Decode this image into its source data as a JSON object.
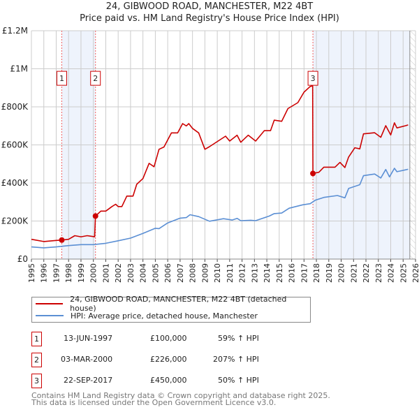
{
  "title_line1": "24, GIBWOOD ROAD, MANCHESTER, M22 4BT",
  "title_line2": "Price paid vs. HM Land Registry's House Price Index (HPI)",
  "colors": {
    "property": "#cc0000",
    "hpi": "#5b8fd4",
    "shade": "#eef3fc",
    "grid": "#cccccc"
  },
  "chart_data": {
    "type": "line",
    "title": "Price paid vs. HM Land Registry's House Price Index (HPI)",
    "xlim": [
      1995,
      2026
    ],
    "ylim": [
      0,
      1200000
    ],
    "x_ticks": [
      1995,
      1996,
      1997,
      1998,
      1999,
      2000,
      2001,
      2002,
      2003,
      2004,
      2005,
      2006,
      2007,
      2008,
      2009,
      2010,
      2011,
      2012,
      2013,
      2014,
      2015,
      2016,
      2017,
      2018,
      2019,
      2020,
      2021,
      2022,
      2023,
      2024,
      2025,
      2026
    ],
    "y_ticks": [
      {
        "value": 0,
        "label": "£0"
      },
      {
        "value": 200000,
        "label": "£200K"
      },
      {
        "value": 400000,
        "label": "£400K"
      },
      {
        "value": 600000,
        "label": "£600K"
      },
      {
        "value": 800000,
        "label": "£800K"
      },
      {
        "value": 1000000,
        "label": "£1M"
      },
      {
        "value": 1200000,
        "label": "£1.2M"
      }
    ],
    "grid": true,
    "shaded_ranges": [
      [
        1997.45,
        2000.17
      ],
      [
        2017.72,
        2025.54
      ]
    ],
    "hatched_from": 2025.54,
    "series": [
      {
        "name": "24, GIBWOOD ROAD, MANCHESTER, M22 4BT (detached house)",
        "color": "#cc0000",
        "x": [
          1995,
          1996,
          1997,
          1997.45,
          1998,
          1998.5,
          1999,
          1999.5,
          2000.1,
          2000.17,
          2000.6,
          2001,
          2001.5,
          2001.8,
          2002,
          2002.3,
          2002.7,
          2003.2,
          2003.5,
          2004,
          2004.5,
          2004.9,
          2005.3,
          2005.7,
          2006.3,
          2006.8,
          2007.2,
          2007.5,
          2007.7,
          2008,
          2008.5,
          2009,
          2009.37,
          2010.67,
          2011,
          2011.6,
          2011.9,
          2012.5,
          2013.1,
          2013.8,
          2014.3,
          2014.6,
          2015.2,
          2015.7,
          2016.5,
          2017,
          2017.5,
          2017.7,
          2017.72,
          2018.2,
          2018.6,
          2019.5,
          2019.9,
          2020.3,
          2020.6,
          2021.1,
          2021.5,
          2021.8,
          2022.7,
          2023.2,
          2023.6,
          2024,
          2024.3,
          2024.5,
          2025.2,
          2025.4
        ],
        "y": [
          104000,
          92000,
          98000,
          100000,
          104000,
          123000,
          117000,
          123000,
          117000,
          226000,
          252000,
          252000,
          276000,
          288000,
          276000,
          276000,
          331000,
          331000,
          393000,
          423000,
          503000,
          485000,
          577000,
          589000,
          663000,
          663000,
          712000,
          700000,
          712000,
          687000,
          663000,
          577000,
          591000,
          646000,
          620000,
          651000,
          614000,
          651000,
          620000,
          675000,
          675000,
          730000,
          724000,
          791000,
          822000,
          877000,
          907000,
          910000,
          450000,
          456000,
          483000,
          483000,
          508000,
          481000,
          536000,
          585000,
          579000,
          658000,
          664000,
          640000,
          701000,
          652000,
          716000,
          689000,
          701000,
          705000
        ]
      },
      {
        "name": "HPI: Average price, detached house, Manchester",
        "color": "#5b8fd4",
        "x": [
          1995,
          1996,
          1997,
          1998,
          1999,
          2000,
          2001,
          2002,
          2003,
          2004,
          2005,
          2005.3,
          2006,
          2007,
          2007.5,
          2007.8,
          2008.5,
          2009.37,
          2010.5,
          2011.2,
          2011.6,
          2011.9,
          2012.7,
          2013.1,
          2014.2,
          2014.6,
          2015.2,
          2015.8,
          2016.9,
          2017.5,
          2017.9,
          2018.6,
          2019.7,
          2020.3,
          2020.6,
          2021.5,
          2021.8,
          2022.7,
          2023.2,
          2023.6,
          2023.9,
          2024.3,
          2024.5,
          2025.2,
          2025.4
        ],
        "y": [
          64000,
          59000,
          64000,
          71000,
          76000,
          76000,
          83000,
          96000,
          110000,
          135000,
          162000,
          160000,
          190000,
          215000,
          218000,
          233000,
          223000,
          199000,
          212000,
          205000,
          214000,
          202000,
          204000,
          202000,
          226000,
          239000,
          242000,
          267000,
          285000,
          291000,
          309000,
          324000,
          334000,
          322000,
          371000,
          391000,
          438000,
          447000,
          426000,
          471000,
          432000,
          477000,
          459000,
          469000,
          472000
        ]
      }
    ],
    "sales": [
      {
        "num": "1",
        "x": 1997.45,
        "y": 100000
      },
      {
        "num": "2",
        "x": 2000.17,
        "y": 226000
      },
      {
        "num": "3",
        "x": 2017.72,
        "y": 450000
      }
    ],
    "marker_label_value": 950000
  },
  "legend": {
    "property": "24, GIBWOOD ROAD, MANCHESTER, M22 4BT (detached house)",
    "hpi": "HPI: Average price, detached house, Manchester"
  },
  "transactions": [
    {
      "num": "1",
      "date": "13-JUN-1997",
      "price": "£100,000",
      "hpi": "59% ↑ HPI"
    },
    {
      "num": "2",
      "date": "03-MAR-2000",
      "price": "£226,000",
      "hpi": "207% ↑ HPI"
    },
    {
      "num": "3",
      "date": "22-SEP-2017",
      "price": "£450,000",
      "hpi": "50% ↑ HPI"
    }
  ],
  "footer_line1": "Contains HM Land Registry data © Crown copyright and database right 2025.",
  "footer_line2": "This data is licensed under the Open Government Licence v3.0."
}
